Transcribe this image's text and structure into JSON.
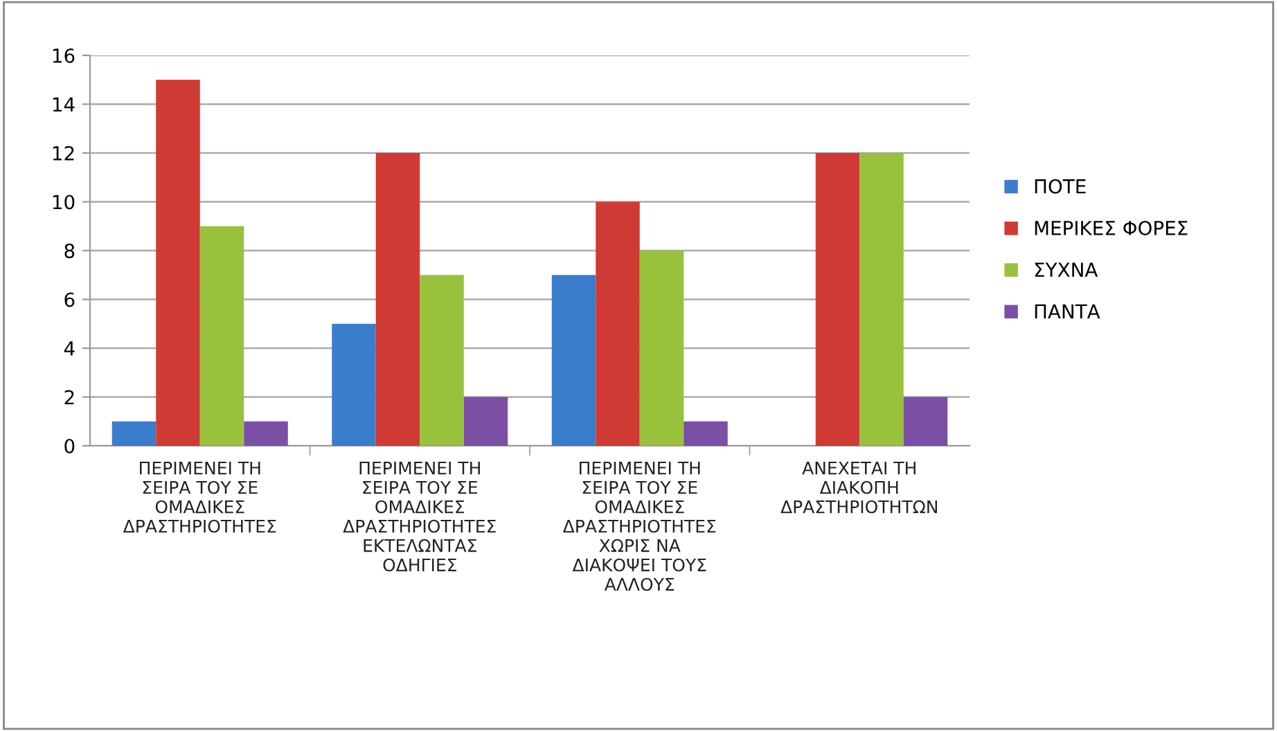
{
  "chart_data": {
    "type": "bar",
    "categories": [
      "ΠΕΡΙΜΕΝΕΙ ΤΗ\nΣΕΙΡΑ ΤΟΥ ΣΕ\nΟΜΑΔΙΚΕΣ\nΔΡΑΣΤΗΡΙΟΤΗΤΕΣ",
      "ΠΕΡΙΜΕΝΕΙ ΤΗ\nΣΕΙΡΑ ΤΟΥ ΣΕ\nΟΜΑΔΙΚΕΣ\nΔΡΑΣΤΗΡΙΟΤΗΤΕΣ\nΕΚΤΕΛΩΝΤΑΣ\nΟΔΗΓΙΕΣ",
      "ΠΕΡΙΜΕΝΕΙ ΤΗ\nΣΕΙΡΑ ΤΟΥ ΣΕ\nΟΜΑΔΙΚΕΣ\nΔΡΑΣΤΗΡΙΟΤΗΤΕΣ\nΧΩΡΙΣ ΝΑ\nΔΙΑΚΟΨΕΙ ΤΟΥΣ\nΑΛΛΟΥΣ",
      "ΑΝΕΧΕΤΑΙ ΤΗ\nΔΙΑΚΟΠΗ\nΔΡΑΣΤΗΡΙΟΤΗΤΩΝ"
    ],
    "series": [
      {
        "name": "ΠΟΤΕ",
        "color": "#3a7dcc",
        "values": [
          1,
          5,
          7,
          0
        ]
      },
      {
        "name": "ΜΕΡΙΚΕΣ ΦΟΡΕΣ",
        "color": "#d03a35",
        "values": [
          15,
          12,
          10,
          12
        ]
      },
      {
        "name": "ΣΥΧΝΑ",
        "color": "#98c13c",
        "values": [
          9,
          7,
          8,
          12
        ]
      },
      {
        "name": "ΠΑΝΤΑ",
        "color": "#7b4fa6",
        "values": [
          1,
          2,
          1,
          2
        ]
      }
    ],
    "ylim": [
      0,
      16
    ],
    "yticks": [
      0,
      2,
      4,
      6,
      8,
      10,
      12,
      14,
      16
    ],
    "grid": "y",
    "legend": "right"
  }
}
